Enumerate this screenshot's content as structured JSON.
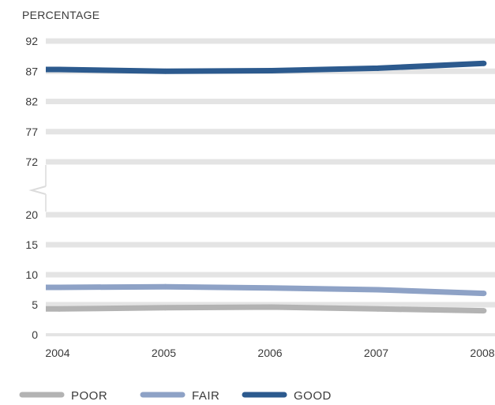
{
  "chart_data": {
    "type": "line",
    "ylabel": "PERCENTAGE",
    "x": [
      "2004",
      "2005",
      "2006",
      "2007",
      "2008"
    ],
    "y_ticks_upper": [
      72,
      77,
      82,
      87,
      92
    ],
    "y_ticks_lower": [
      0,
      5,
      10,
      15,
      20
    ],
    "axis_break": [
      20,
      72
    ],
    "grid": true,
    "legend_position": "bottom-left",
    "series": [
      {
        "name": "POOR",
        "values": [
          4.3,
          4.5,
          4.6,
          4.3,
          4.0
        ],
        "color": "#b3b3b3"
      },
      {
        "name": "FAIR",
        "values": [
          7.9,
          8.0,
          7.8,
          7.5,
          6.9
        ],
        "color": "#8ea2c6"
      },
      {
        "name": "GOOD",
        "values": [
          87.3,
          87.0,
          87.1,
          87.5,
          88.3
        ],
        "color": "#2c5a8e"
      }
    ]
  }
}
